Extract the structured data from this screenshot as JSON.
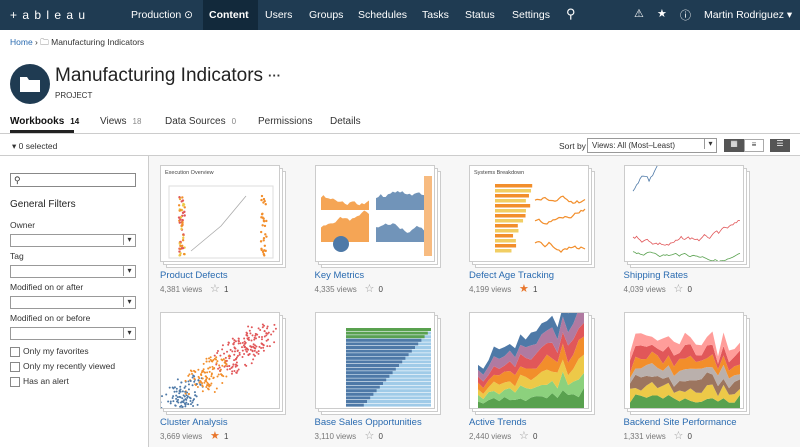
{
  "nav": {
    "logo": "+ a b l e a u",
    "site": "Production",
    "items": [
      "Content",
      "Users",
      "Groups",
      "Schedules",
      "Tasks",
      "Status",
      "Settings"
    ],
    "user": "Martin Rodriguez"
  },
  "breadcrumb": {
    "home": "Home",
    "current": "Manufacturing Indicators"
  },
  "header": {
    "title": "Manufacturing Indicators",
    "menu": "···",
    "kind": "PROJECT"
  },
  "tabs": [
    {
      "label": "Workbooks",
      "count": 14
    },
    {
      "label": "Views",
      "count": 18
    },
    {
      "label": "Data Sources",
      "count": 0
    },
    {
      "label": "Permissions"
    },
    {
      "label": "Details"
    }
  ],
  "toolbar": {
    "selected": "0 selected",
    "sort_label": "Sort by",
    "sort_value": "Views: All (Most–Least)"
  },
  "sidebar": {
    "title": "General Filters",
    "filters": [
      "Owner",
      "Tag",
      "Modified on or after",
      "Modified on or before"
    ],
    "checkboxes": [
      "Only my favorites",
      "Only my recently viewed",
      "Has an alert"
    ]
  },
  "cards": [
    {
      "name": "Product Defects",
      "views": "4,381 views",
      "favorites": 1,
      "favorited": false,
      "thumb_title": "Execution Overview"
    },
    {
      "name": "Key Metrics",
      "views": "4,335 views",
      "favorites": 0,
      "favorited": false
    },
    {
      "name": "Defect Age Tracking",
      "views": "4,199 views",
      "favorites": 1,
      "favorited": true,
      "thumb_title": "Systems Breakdown"
    },
    {
      "name": "Shipping Rates",
      "views": "4,039 views",
      "favorites": 0,
      "favorited": false
    },
    {
      "name": "Cluster Analysis",
      "views": "3,669 views",
      "favorites": 1,
      "favorited": true
    },
    {
      "name": "Base Sales Opportunities",
      "views": "3,110 views",
      "favorites": 0,
      "favorited": false
    },
    {
      "name": "Active Trends",
      "views": "2,440 views",
      "favorites": 0,
      "favorited": false
    },
    {
      "name": "Backend Site Performance",
      "views": "1,331 views",
      "favorites": 0,
      "favorited": false
    }
  ]
}
